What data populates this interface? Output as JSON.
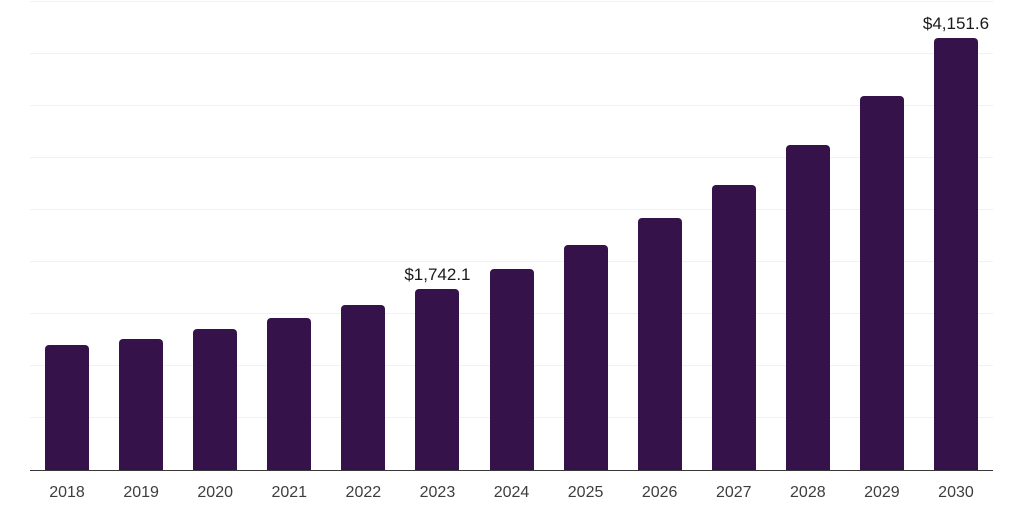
{
  "chart_data": {
    "type": "bar",
    "title": "",
    "xlabel": "",
    "ylabel": "",
    "categories": [
      "2018",
      "2019",
      "2020",
      "2021",
      "2022",
      "2023",
      "2024",
      "2025",
      "2026",
      "2027",
      "2028",
      "2029",
      "2030"
    ],
    "values": [
      1200,
      1263,
      1353,
      1459,
      1587,
      1742.1,
      1930,
      2161,
      2426,
      2738,
      3122,
      3600,
      4151.6
    ],
    "value_labels": {
      "2023": "$1,742.1",
      "2030": "$4,151.6"
    },
    "ylim": [
      0,
      4500
    ],
    "gridline_step": 500,
    "grid": "horizontal only, no y-axis tick labels",
    "legend": "none"
  },
  "colors": {
    "background": "#ffffff",
    "bar": "#35124A",
    "axis": "#383838",
    "gridline": "#f1f1f1",
    "value_label": "#1a1a1a",
    "tick_label": "#3d3d3d"
  }
}
